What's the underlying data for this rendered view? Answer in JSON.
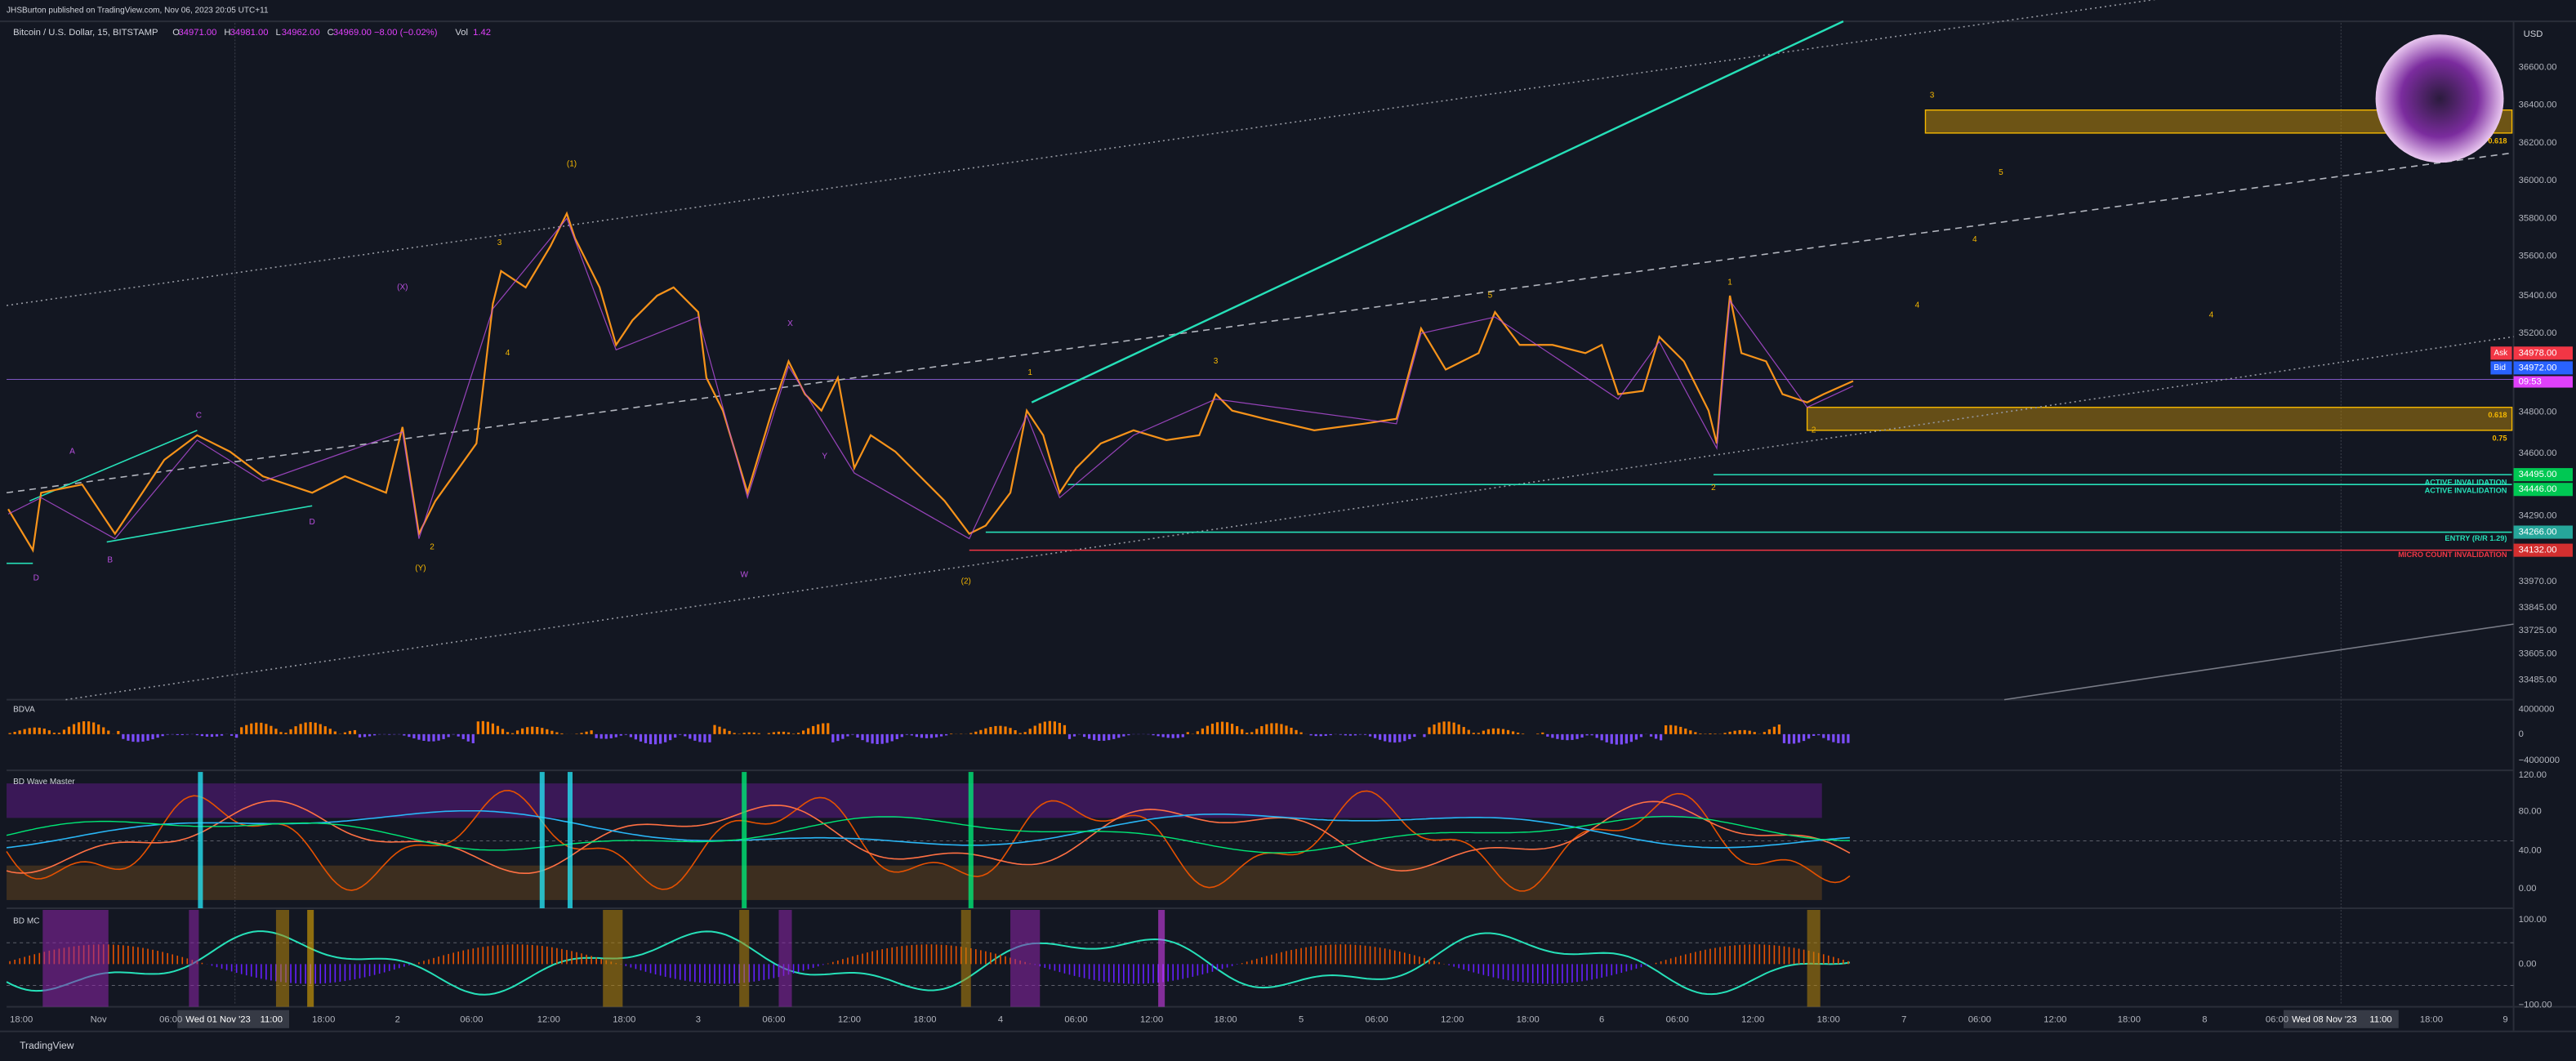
{
  "header": {
    "publisher": "JHSBurton published on TradingView.com, Nov 06, 2023 20:05 UTC+11",
    "symbol": "Bitcoin / U.S. Dollar, 15, BITSTAMP",
    "ohlc": [
      {
        "key": "O",
        "value": "34971.00"
      },
      {
        "key": "H",
        "value": "34981.00"
      },
      {
        "key": "L",
        "value": "34962.00"
      },
      {
        "key": "C",
        "value": "34969.00 −8.00 (−0.02%)"
      },
      {
        "key": "Vol",
        "value": "1.42"
      }
    ]
  },
  "price_axis": {
    "currency": "USD",
    "labels": [
      "36600.00",
      "36400.00",
      "36200.00",
      "36000.00",
      "35800.00",
      "35600.00",
      "35400.00",
      "35200.00",
      "34800.00",
      "34600.00",
      "34290.00",
      "33970.00",
      "33845.00",
      "33725.00",
      "33605.00",
      "33485.00"
    ]
  },
  "price_badges": [
    {
      "label": "Ask",
      "value": "34978.00"
    },
    {
      "label": "Bid",
      "value": "34972.00"
    },
    {
      "value": "09:53"
    },
    {
      "value": "34495.00"
    },
    {
      "value": "34446.00"
    },
    {
      "value": "34266.00"
    },
    {
      "value": "34132.00"
    }
  ],
  "annotations": [
    "0.618",
    "0.618",
    "0.75",
    "ACTIVE INVALIDATION",
    "ACTIVE INVALIDATION",
    "ENTRY (R/R 1.29)",
    "MICRO COUNT INVALIDATION"
  ],
  "wave_labels": [
    "(1)",
    "(2)",
    "(Y)",
    "(X)",
    "3",
    "5",
    "4",
    "4",
    "4",
    "1",
    "3",
    "5",
    "1",
    "2",
    "2",
    "W",
    "X",
    "Y",
    "D",
    "B",
    "C",
    "A",
    "D",
    "2",
    "3",
    "4"
  ],
  "panels": [
    {
      "name": "BDVA",
      "axis": [
        "4000000",
        "0",
        "−4000000"
      ]
    },
    {
      "name": "BD Wave Master",
      "axis": [
        "120.00",
        "80.00",
        "40.00",
        "0.00"
      ]
    },
    {
      "name": "BD MC",
      "axis": [
        "100.00",
        "0.00",
        "−100.00"
      ]
    }
  ],
  "time_axis": [
    "18:00",
    "Nov",
    "06:00",
    "18:00",
    "2",
    "06:00",
    "12:00",
    "18:00",
    "3",
    "06:00",
    "12:00",
    "18:00",
    "4",
    "06:00",
    "12:00",
    "18:00",
    "5",
    "06:00",
    "12:00",
    "18:00",
    "6",
    "06:00",
    "12:00",
    "18:00",
    "7",
    "06:00",
    "12:00",
    "18:00",
    "8",
    "06:00",
    "18:00",
    "9"
  ],
  "time_badges": [
    "Wed 01 Nov '23",
    "11:00",
    "Wed 08 Nov '23",
    "11:00"
  ],
  "footer": "TradingView"
}
